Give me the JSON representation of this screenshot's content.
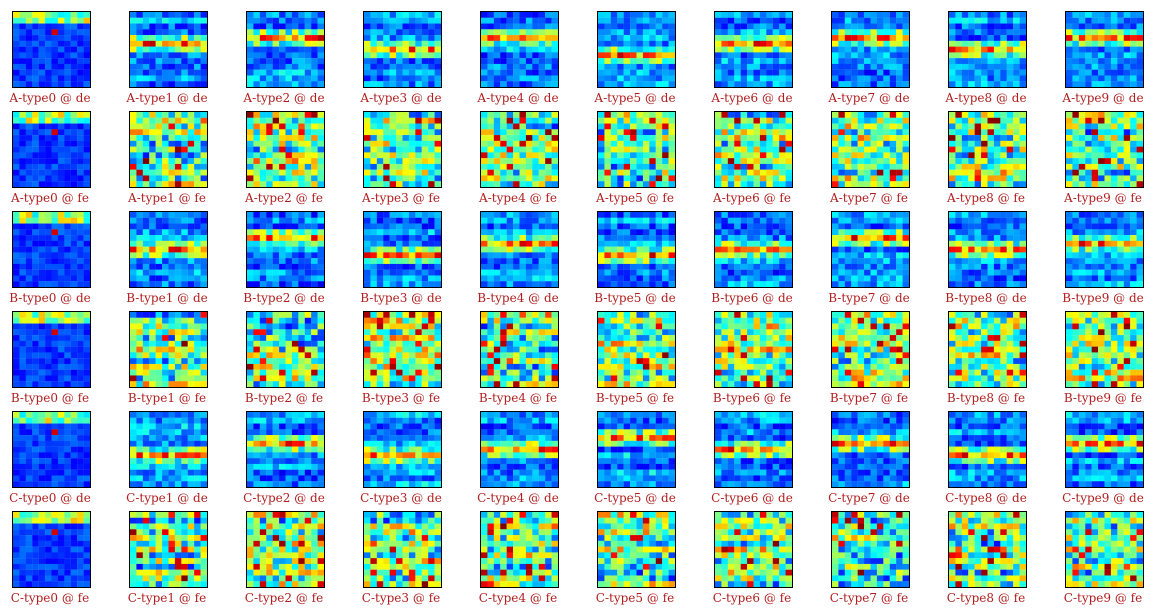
{
  "chart_data": {
    "type": "heatmap",
    "grid_rows": 6,
    "grid_cols": 10,
    "colormap": "jet",
    "colors": {
      "caption": "#b01e1e",
      "border": "#000000"
    },
    "panels": [
      [
        "A-type0 @ de",
        "A-type1 @ de",
        "A-type2 @ de",
        "A-type3 @ de",
        "A-type4 @ de",
        "A-type5 @ de",
        "A-type6 @ de",
        "A-type7 @ de",
        "A-type8 @ de",
        "A-type9 @ de"
      ],
      [
        "A-type0 @ fe",
        "A-type1 @ fe",
        "A-type2 @ fe",
        "A-type3 @ fe",
        "A-type4 @ fe",
        "A-type5 @ fe",
        "A-type6 @ fe",
        "A-type7 @ fe",
        "A-type8 @ fe",
        "A-type9 @ fe"
      ],
      [
        "B-type0 @ de",
        "B-type1 @ de",
        "B-type2 @ de",
        "B-type3 @ de",
        "B-type4 @ de",
        "B-type5 @ de",
        "B-type6 @ de",
        "B-type7 @ de",
        "B-type8 @ de",
        "B-type9 @ de"
      ],
      [
        "B-type0 @ fe",
        "B-type1 @ fe",
        "B-type2 @ fe",
        "B-type3 @ fe",
        "B-type4 @ fe",
        "B-type5 @ fe",
        "B-type6 @ fe",
        "B-type7 @ fe",
        "B-type8 @ fe",
        "B-type9 @ fe"
      ],
      [
        "C-type0 @ de",
        "C-type1 @ de",
        "C-type2 @ de",
        "C-type3 @ de",
        "C-type4 @ de",
        "C-type5 @ de",
        "C-type6 @ de",
        "C-type7 @ de",
        "C-type8 @ de",
        "C-type9 @ de"
      ],
      [
        "C-type0 @ fe",
        "C-type1 @ fe",
        "C-type2 @ fe",
        "C-type3 @ fe",
        "C-type4 @ fe",
        "C-type5 @ fe",
        "C-type6 @ fe",
        "C-type7 @ fe",
        "C-type8 @ fe",
        "C-type9 @ fe"
      ]
    ]
  }
}
